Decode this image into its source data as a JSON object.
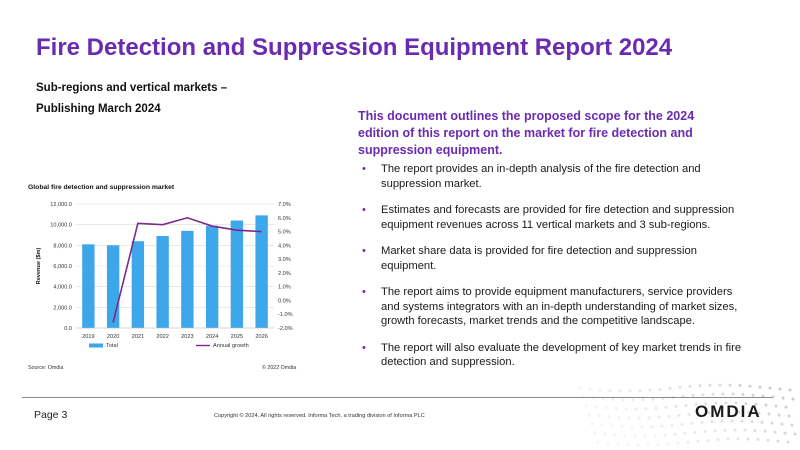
{
  "header": {
    "title": "Fire Detection and Suppression Equipment Report 2024",
    "subtitle_line1": "Sub-regions and vertical markets –",
    "subtitle_line2": "Publishing March 2024"
  },
  "intro": "This document outlines the proposed scope for the 2024 edition of this report on the market for fire detection and suppression equipment.",
  "bullets": [
    "The report provides an in-depth analysis of the fire detection and suppression market.",
    "Estimates and forecasts are provided for fire detection and suppression equipment revenues across 11 vertical markets and 3 sub-regions.",
    "Market share data is provided for fire detection and suppression equipment.",
    "The report aims to provide equipment manufacturers, service providers and systems integrators with an in-depth understanding of market sizes, growth forecasts, market trends and the competitive landscape.",
    "The report will also evaluate the development of key market trends in fire detection and suppression."
  ],
  "chart_data": {
    "type": "bar",
    "title": "Global fire detection and suppression market",
    "categories": [
      "2019",
      "2020",
      "2021",
      "2022",
      "2023",
      "2024",
      "2025",
      "2026"
    ],
    "series": [
      {
        "name": "Total",
        "type": "bar",
        "axis": "left",
        "color": "#3ea6ea",
        "values": [
          8100,
          8000,
          8400,
          8900,
          9400,
          9900,
          10400,
          10900
        ]
      },
      {
        "name": "Annual growth",
        "type": "line",
        "axis": "right",
        "color": "#7b2a8c",
        "values": [
          null,
          -1.6,
          5.6,
          5.5,
          6.0,
          5.4,
          5.1,
          5.0
        ]
      }
    ],
    "ylabel": "Revenue ($m)",
    "ylim": [
      0,
      12000
    ],
    "y_ticks": [
      "0.0",
      "2,000.0",
      "4,000.0",
      "6,000.0",
      "8,000.0",
      "10,000.0",
      "12,000.0"
    ],
    "y2lim": [
      -2.0,
      7.0
    ],
    "y2_ticks": [
      "-2.0%",
      "-1.0%",
      "0.0%",
      "1.0%",
      "2.0%",
      "3.0%",
      "4.0%",
      "5.0%",
      "6.0%",
      "7.0%"
    ],
    "grid": true,
    "legend": "bottom",
    "source": "Source: Omdia",
    "copyright": "© 2022 Omdia"
  },
  "footer": {
    "page": "Page 3",
    "copyright": "Copyright © 2024. All rights reserved. Informa Tech, a trading division of Informa PLC",
    "logo": "OMDIA"
  },
  "colors": {
    "accent": "#6a2bb0",
    "bar": "#3ea6ea",
    "line": "#7b2a8c"
  }
}
